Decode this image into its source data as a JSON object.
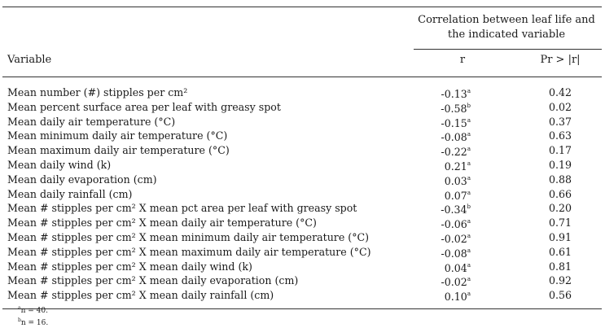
{
  "header": {
    "correlation_heading_line1": "Correlation between leaf life and",
    "correlation_heading_line2": "the indicated variable",
    "variable_col": "Variable",
    "r_col": "r",
    "p_col": "Pr > |r|"
  },
  "rows": [
    {
      "variable": "Mean number (#) stipples per cm²",
      "r": "-0.13",
      "r_sup": "a",
      "p": "0.42"
    },
    {
      "variable": "Mean percent surface area per leaf with greasy spot",
      "r": "-0.58",
      "r_sup": "b",
      "p": "0.02"
    },
    {
      "variable": "Mean daily air temperature (°C)",
      "r": "-0.15",
      "r_sup": "a",
      "p": "0.37"
    },
    {
      "variable": "Mean minimum daily air temperature (°C)",
      "r": "-0.08",
      "r_sup": "a",
      "p": "0.63"
    },
    {
      "variable": "Mean maximum daily air temperature (°C)",
      "r": "-0.22",
      "r_sup": "a",
      "p": "0.17"
    },
    {
      "variable": "Mean daily wind (k)",
      "r": "0.21",
      "r_sup": "a",
      "p": "0.19"
    },
    {
      "variable": "Mean daily evaporation (cm)",
      "r": "0.03",
      "r_sup": "a",
      "p": "0.88"
    },
    {
      "variable": "Mean daily rainfall (cm)",
      "r": "0.07",
      "r_sup": "a",
      "p": "0.66"
    },
    {
      "variable": "Mean # stipples per cm² X mean pct area per leaf with greasy spot",
      "r": "-0.34",
      "r_sup": "b",
      "p": "0.20"
    },
    {
      "variable": "Mean # stipples per cm² X mean daily air temperature (°C)",
      "r": "-0.06",
      "r_sup": "a",
      "p": "0.71"
    },
    {
      "variable": "Mean # stipples per cm² X mean minimum daily air temperature (°C)",
      "r": "-0.02",
      "r_sup": "a",
      "p": "0.91"
    },
    {
      "variable": "Mean # stipples per cm² X mean maximum daily air temperature (°C)",
      "r": "-0.08",
      "r_sup": "a",
      "p": "0.61"
    },
    {
      "variable": "Mean # stipples per cm² X mean daily wind (k)",
      "r": "0.04",
      "r_sup": "a",
      "p": "0.81"
    },
    {
      "variable": "Mean # stipples per cm² X mean daily evaporation (cm)",
      "r": "-0.02",
      "r_sup": "a",
      "p": "0.92"
    },
    {
      "variable": "Mean # stipples per cm² X mean daily rainfall (cm)",
      "r": "0.10",
      "r_sup": "a",
      "p": "0.56"
    }
  ],
  "footnotes": [
    {
      "mark": "a",
      "text": "n = 40."
    },
    {
      "mark": "b",
      "text": "n = 16."
    }
  ]
}
